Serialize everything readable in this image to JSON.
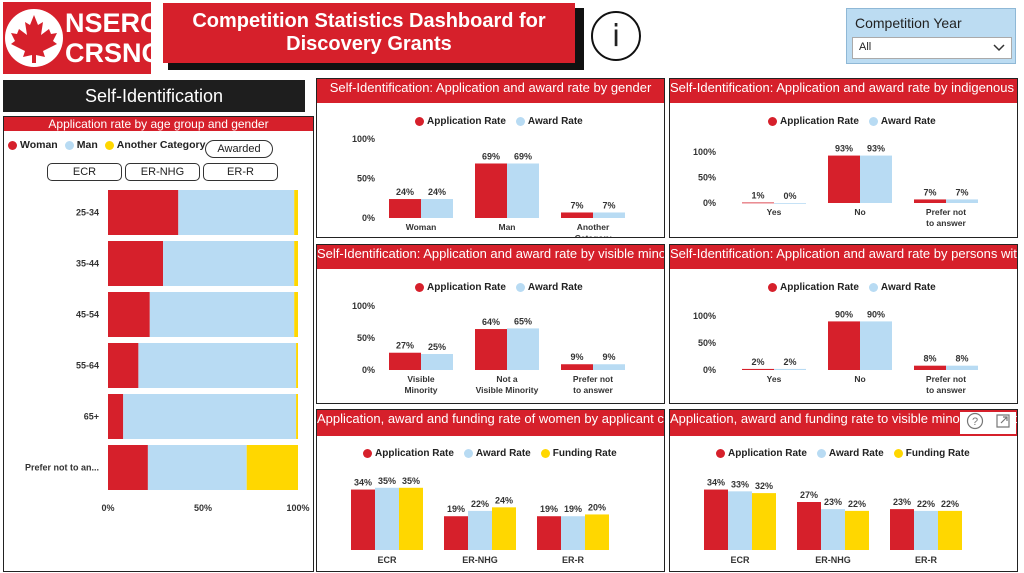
{
  "header": {
    "logo_line1": "NSERC",
    "logo_line2": "CRSNG",
    "title": "Competition Statistics Dashboard for Discovery Grants",
    "info_icon": "info-icon"
  },
  "slicer": {
    "label": "Competition Year",
    "value": "All"
  },
  "section_title": "Self-Identification",
  "colors": {
    "red": "#d6202b",
    "blue": "#b8dbf3",
    "yellow": "#ffd700"
  },
  "age_panel": {
    "title": "Application rate by age group and gender",
    "legend": [
      "Woman",
      "Man",
      "Another Category"
    ],
    "awarded_button": "Awarded",
    "filter_buttons": [
      "ECR",
      "ER-NHG",
      "ER-R"
    ]
  },
  "labels": {
    "application_rate": "Application Rate",
    "award_rate": "Award Rate",
    "funding_rate": "Funding Rate"
  },
  "panels": {
    "gender": "Self-Identification: Application and award rate by gender",
    "indigenous": "Self-Identification: Application and award rate by indigenous status",
    "visible_minority": "Self-Identification: Application and award rate by visible minority status",
    "disabilities": "Self-Identification: Application and award rate by persons with disabilities status",
    "women_category": "Application, award and funding rate of women by applicant category",
    "vm_category": "Application, award and funding rate to visible minority by applicant category"
  },
  "chart_data": [
    {
      "id": "age",
      "type": "bar",
      "orientation": "horizontal-stacked",
      "title": "Application rate by age group and gender",
      "categories": [
        "25-34",
        "35-44",
        "45-54",
        "55-64",
        "65+",
        "Prefer not to an..."
      ],
      "series": [
        {
          "name": "Woman",
          "values": [
            37,
            29,
            22,
            16,
            8,
            21
          ]
        },
        {
          "name": "Man",
          "values": [
            61,
            69,
            76,
            83,
            91,
            52
          ]
        },
        {
          "name": "Another Category",
          "values": [
            2,
            2,
            2,
            1,
            1,
            27
          ]
        }
      ],
      "xlim": [
        0,
        100
      ],
      "xticks": [
        "0%",
        "50%",
        "100%"
      ]
    },
    {
      "id": "gender",
      "type": "bar",
      "title": "Self-Identification: Application and award rate by gender",
      "categories": [
        "Woman",
        "Man",
        "Another Category"
      ],
      "series": [
        {
          "name": "Application Rate",
          "values": [
            24,
            69,
            7
          ],
          "labels": [
            "24%",
            "69%",
            "7%"
          ]
        },
        {
          "name": "Award Rate",
          "values": [
            24,
            69,
            7
          ],
          "labels": [
            "24%",
            "69%",
            "7%"
          ]
        }
      ],
      "ylim": [
        0,
        100
      ],
      "yticks": [
        "0%",
        "50%",
        "100%"
      ]
    },
    {
      "id": "indigenous",
      "type": "bar",
      "title": "Self-Identification: Application and award rate by indigenous status",
      "categories": [
        "Yes",
        "No",
        "Prefer not to answer"
      ],
      "series": [
        {
          "name": "Application Rate",
          "values": [
            1,
            93,
            7
          ],
          "labels": [
            "1%",
            "93%",
            "7%"
          ]
        },
        {
          "name": "Award Rate",
          "values": [
            0,
            93,
            7
          ],
          "labels": [
            "0%",
            "93%",
            "7%"
          ]
        }
      ],
      "ylim": [
        0,
        100
      ],
      "yticks": [
        "0%",
        "50%",
        "100%"
      ]
    },
    {
      "id": "visible_minority",
      "type": "bar",
      "title": "Self-Identification: Application and award rate by visible minority status",
      "categories": [
        "Visible Minority",
        "Not a Visible Minority",
        "Prefer not to answer"
      ],
      "series": [
        {
          "name": "Application Rate",
          "values": [
            27,
            64,
            9
          ],
          "labels": [
            "27%",
            "64%",
            "9%"
          ]
        },
        {
          "name": "Award Rate",
          "values": [
            25,
            65,
            9
          ],
          "labels": [
            "25%",
            "65%",
            "9%"
          ]
        }
      ],
      "ylim": [
        0,
        100
      ],
      "yticks": [
        "0%",
        "50%",
        "100%"
      ]
    },
    {
      "id": "disabilities",
      "type": "bar",
      "title": "Self-Identification: Application and award rate by persons with disabilities status",
      "categories": [
        "Yes",
        "No",
        "Prefer not to answer"
      ],
      "series": [
        {
          "name": "Application Rate",
          "values": [
            2,
            90,
            8
          ],
          "labels": [
            "2%",
            "90%",
            "8%"
          ]
        },
        {
          "name": "Award Rate",
          "values": [
            2,
            90,
            8
          ],
          "labels": [
            "2%",
            "90%",
            "8%"
          ]
        }
      ],
      "ylim": [
        0,
        100
      ],
      "yticks": [
        "0%",
        "50%",
        "100%"
      ]
    },
    {
      "id": "women_category",
      "type": "bar",
      "title": "Application, award and funding rate of women by applicant category",
      "categories": [
        "ECR",
        "ER-NHG",
        "ER-R"
      ],
      "series": [
        {
          "name": "Application Rate",
          "values": [
            34,
            19,
            19
          ],
          "labels": [
            "34%",
            "19%",
            "19%"
          ]
        },
        {
          "name": "Award Rate",
          "values": [
            35,
            22,
            19
          ],
          "labels": [
            "35%",
            "22%",
            "19%"
          ]
        },
        {
          "name": "Funding Rate",
          "values": [
            35,
            24,
            20
          ],
          "labels": [
            "35%",
            "24%",
            "20%"
          ]
        }
      ],
      "ylim": [
        0,
        36
      ]
    },
    {
      "id": "vm_category",
      "type": "bar",
      "title": "Application, award and funding rate to visible minority by applicant category",
      "categories": [
        "ECR",
        "ER-NHG",
        "ER-R"
      ],
      "series": [
        {
          "name": "Application Rate",
          "values": [
            34,
            27,
            23
          ],
          "labels": [
            "34%",
            "27%",
            "23%"
          ]
        },
        {
          "name": "Award Rate",
          "values": [
            33,
            23,
            22
          ],
          "labels": [
            "33%",
            "23%",
            "22%"
          ]
        },
        {
          "name": "Funding Rate",
          "values": [
            32,
            22,
            22
          ],
          "labels": [
            "32%",
            "22%",
            "22%"
          ]
        }
      ],
      "ylim": [
        0,
        36
      ]
    }
  ]
}
